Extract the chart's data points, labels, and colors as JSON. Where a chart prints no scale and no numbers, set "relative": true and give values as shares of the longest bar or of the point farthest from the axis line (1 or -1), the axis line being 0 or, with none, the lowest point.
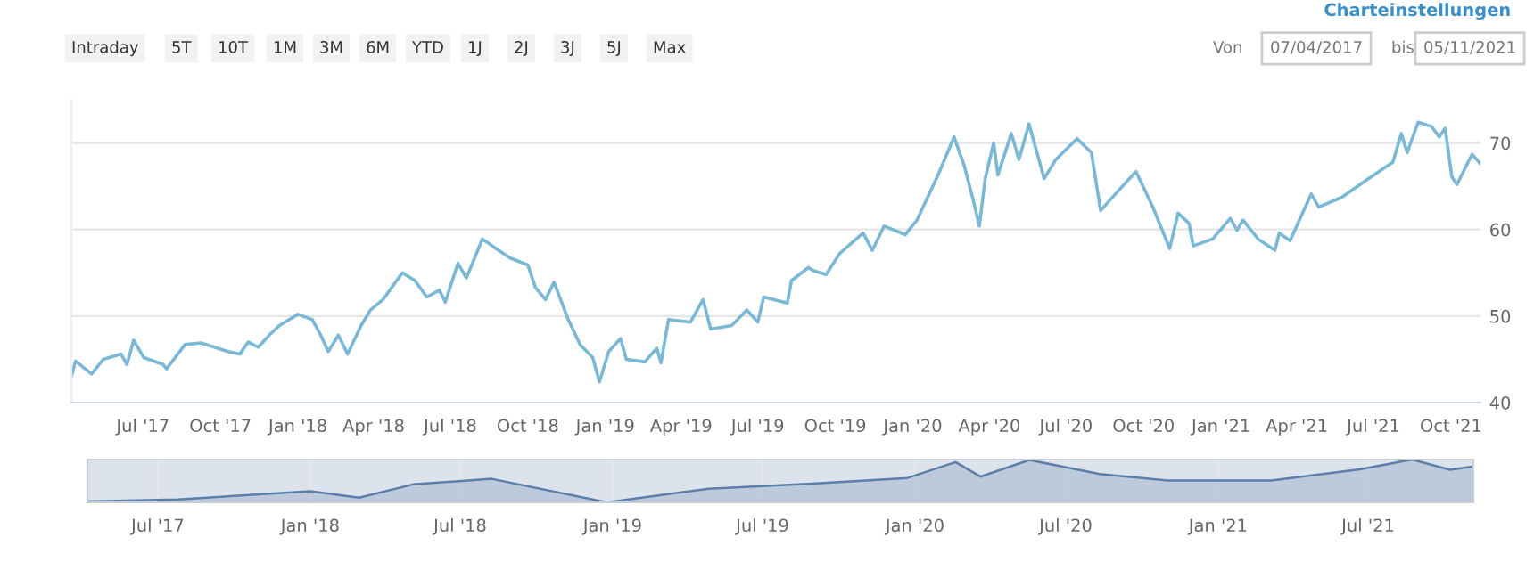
{
  "chart_data": [
    {
      "type": "line",
      "annotations": [
        "Charteinstellungen",
        "Intraday",
        "5T",
        "10T",
        "1M",
        "3M",
        "6M",
        "YTD",
        "1J",
        "2J",
        "3J",
        "5J",
        "Max",
        "Von",
        "07/04/2017",
        "bis",
        "05/11/2021"
      ],
      "x": [
        "2017-04-07",
        "2017-04-12",
        "2017-05-01",
        "2017-05-15",
        "2017-06-05",
        "2017-06-12",
        "2017-06-20",
        "2017-07-02",
        "2017-07-25",
        "2017-07-29",
        "2017-08-20",
        "2017-09-08",
        "2017-10-10",
        "2017-10-24",
        "2017-11-03",
        "2017-11-15",
        "2017-11-28",
        "2017-12-10",
        "2018-01-01",
        "2018-01-18",
        "2018-01-28",
        "2018-02-06",
        "2018-02-18",
        "2018-03-01",
        "2018-03-17",
        "2018-03-28",
        "2018-04-12",
        "2018-05-05",
        "2018-05-20",
        "2018-06-03",
        "2018-06-18",
        "2018-06-25",
        "2018-07-10",
        "2018-07-20",
        "2018-08-08",
        "2018-08-24",
        "2018-09-10",
        "2018-10-01",
        "2018-10-10",
        "2018-10-22",
        "2018-11-01",
        "2018-11-18",
        "2018-12-02",
        "2018-12-17",
        "2018-12-25",
        "2019-01-05",
        "2019-01-19",
        "2019-01-26",
        "2019-02-17",
        "2019-03-03",
        "2019-03-08",
        "2019-03-17",
        "2019-04-12",
        "2019-04-27",
        "2019-05-06",
        "2019-05-31",
        "2019-06-18",
        "2019-07-01",
        "2019-07-08",
        "2019-08-05",
        "2019-08-10",
        "2019-08-30",
        "2019-09-06",
        "2019-09-20",
        "2019-10-06",
        "2019-11-03",
        "2019-11-14",
        "2019-11-28",
        "2019-12-23",
        "2020-01-06",
        "2020-01-31",
        "2020-02-19",
        "2020-03-02",
        "2020-03-13",
        "2020-03-20",
        "2020-03-27",
        "2020-04-06",
        "2020-04-11",
        "2020-04-27",
        "2020-05-06",
        "2020-05-18",
        "2020-06-05",
        "2020-06-19",
        "2020-07-14",
        "2020-07-31",
        "2020-08-11",
        "2020-09-04",
        "2020-09-22",
        "2020-10-12",
        "2020-11-01",
        "2020-11-11",
        "2020-11-24",
        "2020-11-29",
        "2020-12-22",
        "2021-01-12",
        "2021-01-20",
        "2021-01-27",
        "2021-02-14",
        "2021-03-06",
        "2021-03-11",
        "2021-03-24",
        "2021-04-04",
        "2021-04-18",
        "2021-04-27",
        "2021-05-24",
        "2021-06-21",
        "2021-07-24",
        "2021-08-03",
        "2021-08-10",
        "2021-08-23",
        "2021-09-08",
        "2021-09-17",
        "2021-09-24",
        "2021-10-02",
        "2021-10-08",
        "2021-10-26",
        "2021-11-05"
      ],
      "series": [
        {
          "color": "#7ab8d6",
          "values": [
            43.0,
            44.8,
            43.3,
            45.0,
            45.6,
            44.4,
            47.2,
            45.2,
            44.4,
            43.9,
            46.7,
            46.9,
            45.9,
            45.6,
            47.0,
            46.4,
            47.8,
            48.9,
            50.2,
            49.6,
            47.8,
            45.9,
            47.8,
            45.6,
            48.9,
            50.7,
            51.9,
            55.0,
            54.1,
            52.2,
            53.0,
            51.6,
            56.1,
            54.4,
            58.9,
            57.8,
            56.7,
            55.9,
            53.3,
            51.9,
            53.9,
            49.6,
            46.7,
            45.2,
            42.4,
            45.9,
            47.4,
            45.0,
            44.7,
            46.3,
            44.6,
            49.6,
            49.3,
            51.9,
            48.5,
            48.9,
            50.7,
            49.3,
            52.2,
            51.5,
            54.1,
            55.6,
            55.2,
            54.8,
            57.2,
            59.6,
            57.6,
            60.4,
            59.4,
            61.1,
            66.3,
            70.7,
            67.4,
            63.3,
            60.4,
            65.9,
            70.0,
            66.3,
            71.1,
            68.1,
            72.2,
            65.9,
            68.1,
            70.5,
            68.9,
            62.2,
            64.8,
            66.7,
            62.6,
            57.8,
            61.9,
            60.7,
            58.1,
            58.9,
            61.3,
            59.9,
            61.1,
            58.9,
            57.6,
            59.6,
            58.7,
            61.1,
            64.1,
            62.6,
            63.7,
            65.6,
            67.8,
            71.1,
            68.9,
            72.4,
            71.9,
            70.7,
            71.7,
            66.1,
            65.2,
            68.7,
            67.6
          ]
        }
      ],
      "xlim": [
        "2017-04-07",
        "2021-11-05"
      ],
      "xticks": [
        {
          "value": "2017-07-01",
          "label": "Jul '17"
        },
        {
          "value": "2017-10-01",
          "label": "Oct '17"
        },
        {
          "value": "2018-01-01",
          "label": "Jan '18"
        },
        {
          "value": "2018-04-01",
          "label": "Apr '18"
        },
        {
          "value": "2018-07-01",
          "label": "Jul '18"
        },
        {
          "value": "2018-10-01",
          "label": "Oct '18"
        },
        {
          "value": "2019-01-01",
          "label": "Jan '19"
        },
        {
          "value": "2019-04-01",
          "label": "Apr '19"
        },
        {
          "value": "2019-07-01",
          "label": "Jul '19"
        },
        {
          "value": "2019-10-01",
          "label": "Oct '19"
        },
        {
          "value": "2020-01-01",
          "label": "Jan '20"
        },
        {
          "value": "2020-04-01",
          "label": "Apr '20"
        },
        {
          "value": "2020-07-01",
          "label": "Jul '20"
        },
        {
          "value": "2020-10-01",
          "label": "Oct '20"
        },
        {
          "value": "2021-01-01",
          "label": "Jan '21"
        },
        {
          "value": "2021-04-01",
          "label": "Apr '21"
        },
        {
          "value": "2021-07-01",
          "label": "Jul '21"
        },
        {
          "value": "2021-10-01",
          "label": "Oct '21"
        }
      ],
      "ylim": [
        40,
        75
      ],
      "yticks": [
        40,
        50,
        60,
        70
      ],
      "grid": "y",
      "line_style": "solid"
    },
    {
      "type": "area",
      "relative": true,
      "x": [
        "2017-04-07",
        "2017-07-25",
        "2018-01-01",
        "2018-03-01",
        "2018-05-05",
        "2018-08-08",
        "2018-12-25",
        "2019-04-27",
        "2019-08-30",
        "2019-12-23",
        "2020-02-19",
        "2020-03-20",
        "2020-05-18",
        "2020-08-11",
        "2020-11-01",
        "2021-03-06",
        "2021-06-21",
        "2021-08-23",
        "2021-10-08",
        "2021-11-05"
      ],
      "series": [
        {
          "color": "#5b7fa8",
          "values": [
            0.02,
            0.07,
            0.26,
            0.11,
            0.42,
            0.55,
            0.0,
            0.32,
            0.44,
            0.57,
            0.94,
            0.6,
            0.99,
            0.66,
            0.51,
            0.51,
            0.77,
            1.0,
            0.76,
            0.84
          ]
        }
      ],
      "xlim": [
        "2017-04-07",
        "2021-11-05"
      ],
      "xticks": [
        {
          "value": "2017-07-01",
          "label": "Jul '17"
        },
        {
          "value": "2018-01-01",
          "label": "Jan '18"
        },
        {
          "value": "2018-07-01",
          "label": "Jul '18"
        },
        {
          "value": "2019-01-01",
          "label": "Jan '19"
        },
        {
          "value": "2019-07-01",
          "label": "Jul '19"
        },
        {
          "value": "2020-01-01",
          "label": "Jan '20"
        },
        {
          "value": "2020-07-01",
          "label": "Jul '20"
        },
        {
          "value": "2021-01-01",
          "label": "Jan '21"
        },
        {
          "value": "2021-07-01",
          "label": "Jul '21"
        }
      ],
      "grid": "x"
    }
  ]
}
